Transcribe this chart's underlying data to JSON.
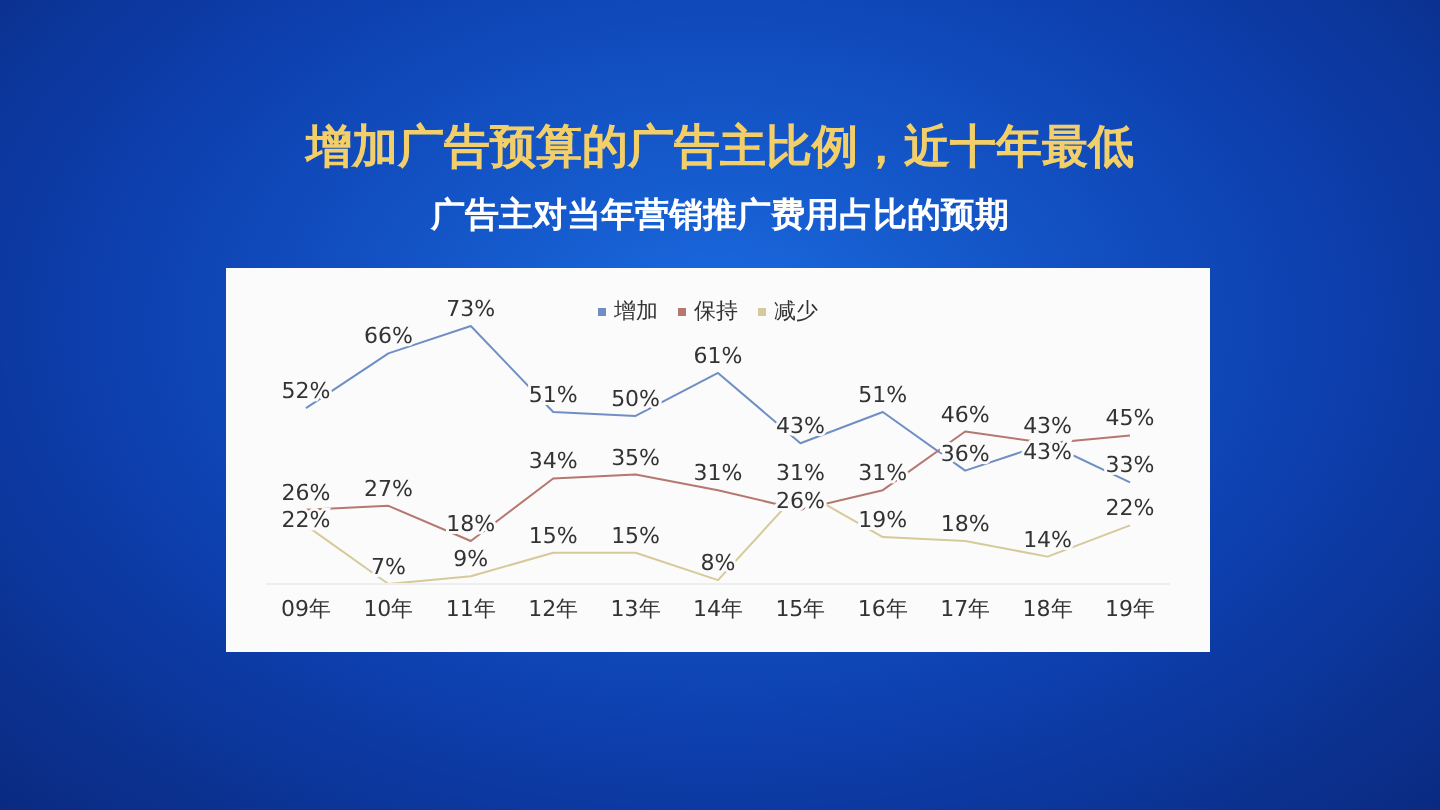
{
  "chart_data": {
    "type": "line",
    "title": "增加广告预算的广告主比例，近十年最低",
    "subtitle": "广告主对当年营销推广费用占比的预期",
    "categories": [
      "09年",
      "10年",
      "11年",
      "12年",
      "13年",
      "14年",
      "15年",
      "16年",
      "17年",
      "18年",
      "19年"
    ],
    "series": [
      {
        "name": "增加",
        "color": "#6f8fc4",
        "values": [
          52,
          66,
          73,
          51,
          50,
          61,
          43,
          51,
          36,
          43,
          33
        ],
        "value_labels": [
          "52%",
          "66%",
          "73%",
          "51%",
          "50%",
          "61%",
          "43%",
          "51%",
          "36%",
          "43%",
          "33%"
        ]
      },
      {
        "name": "保持",
        "color": "#b5776f",
        "values": [
          26,
          27,
          18,
          34,
          35,
          31,
          26,
          31,
          46,
          43,
          45
        ],
        "value_labels": [
          "26%",
          "27%",
          "18%",
          "34%",
          "35%",
          "31%",
          "26%",
          "31%",
          "46%",
          "43%",
          "45%"
        ]
      },
      {
        "name": "减少",
        "color": "#d6c99a",
        "values": [
          22,
          7,
          9,
          15,
          15,
          8,
          31,
          19,
          18,
          14,
          22
        ],
        "value_labels": [
          "22%",
          "7%",
          "9%",
          "15%",
          "15%",
          "8%",
          "31%",
          "19%",
          "18%",
          "14%",
          "22%"
        ]
      }
    ],
    "legend": "top",
    "tick_labels": "x",
    "marker": "none",
    "line_style": "solid"
  }
}
